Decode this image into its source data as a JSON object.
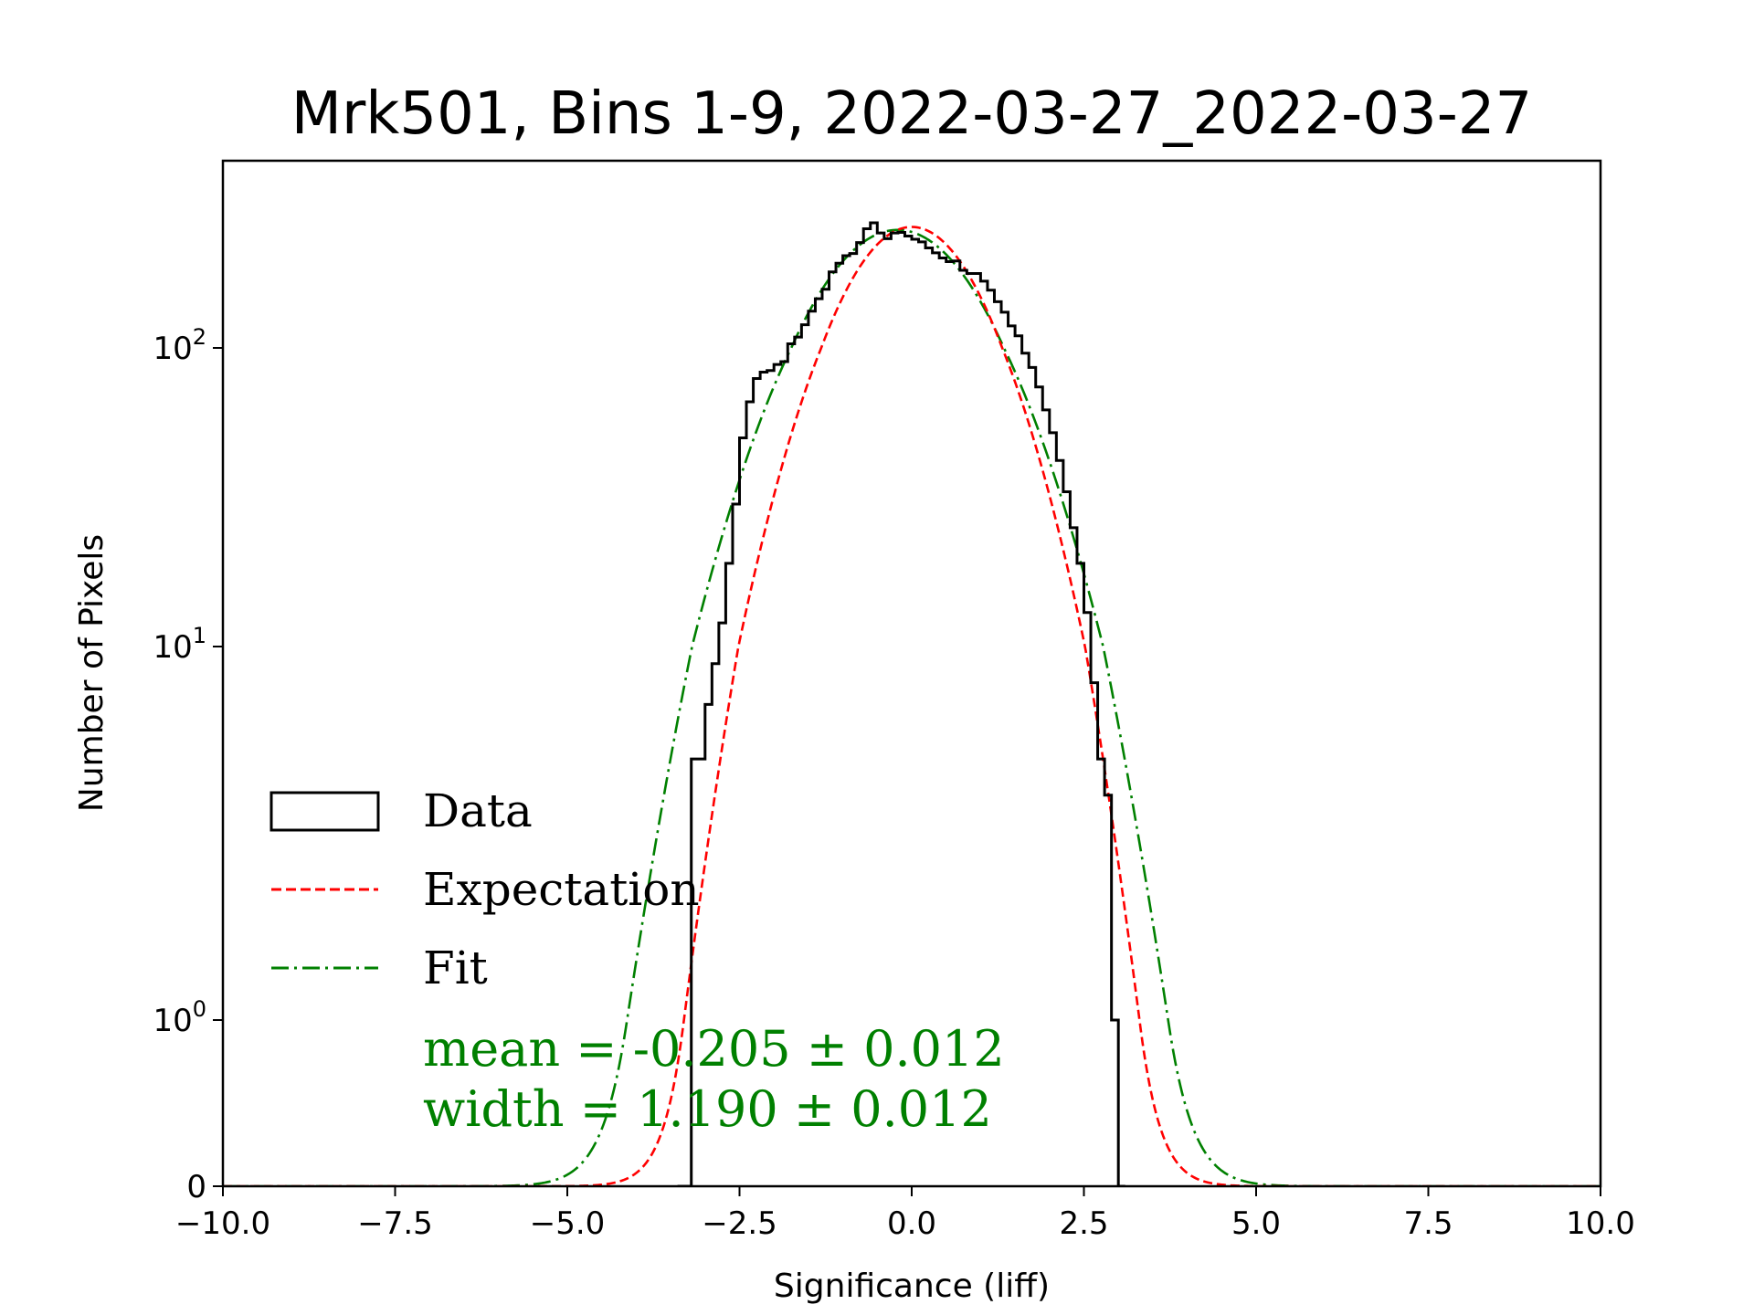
{
  "chart_data": {
    "type": "histogram",
    "title": "Mrk501, Bins 1-9, 2022-03-27_2022-03-27",
    "xlabel": "Significance (liff)",
    "ylabel": "Number of Pixels",
    "xlim": [
      -10.0,
      10.0
    ],
    "x_ticks": [
      -10.0,
      -7.5,
      -5.0,
      -2.5,
      0.0,
      2.5,
      5.0,
      7.5,
      10.0
    ],
    "x_tick_labels": [
      "−10.0",
      "−7.5",
      "−5.0",
      "−2.5",
      "0.0",
      "2.5",
      "5.0",
      "7.5",
      "10.0"
    ],
    "y_scale": "symlog",
    "y_ticks": [
      0,
      1,
      10,
      100
    ],
    "y_tick_labels": [
      {
        "plain": "0"
      },
      {
        "base": "10",
        "exp": "0"
      },
      {
        "base": "10",
        "exp": "1"
      },
      {
        "base": "10",
        "exp": "2"
      }
    ],
    "ylim_top": 380,
    "colors": {
      "data": "#000000",
      "expectation": "#ff0000",
      "fit": "#008000",
      "faded": "#bbbbbb"
    },
    "legend": {
      "location": "lower-left",
      "entries": [
        {
          "label": "Data",
          "style": "box"
        },
        {
          "label": "Expectation",
          "style": "dashed"
        },
        {
          "label": "Fit",
          "style": "dashdot"
        }
      ]
    },
    "annotations": [
      {
        "text": "mean = -0.205 ± 0.012",
        "color": "#008000"
      },
      {
        "text": "width = 1.190 ± 0.012",
        "color": "#008000"
      }
    ],
    "series": [
      {
        "name": "Data",
        "kind": "step-histogram",
        "bin_width": 0.1,
        "bins": [
          [
            -3.4,
            0.0
          ],
          [
            -3.3,
            0.0
          ],
          [
            -3.2,
            5.0
          ],
          [
            -3.1,
            5.0
          ],
          [
            -3.0,
            7.0
          ],
          [
            -2.9,
            9.0
          ],
          [
            -2.8,
            12.0
          ],
          [
            -2.7,
            19.0
          ],
          [
            -2.6,
            30.0
          ],
          [
            -2.5,
            50.0
          ],
          [
            -2.4,
            66.0
          ],
          [
            -2.3,
            79.0
          ],
          [
            -2.2,
            83.0
          ],
          [
            -2.1,
            84.0
          ],
          [
            -2.0,
            88.0
          ],
          [
            -1.9,
            90.0
          ],
          [
            -1.8,
            103.0
          ],
          [
            -1.7,
            108.0
          ],
          [
            -1.6,
            118.0
          ],
          [
            -1.5,
            130.0
          ],
          [
            -1.4,
            142.0
          ],
          [
            -1.3,
            152.0
          ],
          [
            -1.2,
            172.0
          ],
          [
            -1.1,
            183.0
          ],
          [
            -1.0,
            193.0
          ],
          [
            -0.9,
            196.0
          ],
          [
            -0.8,
            212.0
          ],
          [
            -0.7,
            234.0
          ],
          [
            -0.6,
            244.0
          ],
          [
            -0.5,
            227.0
          ],
          [
            -0.4,
            218.0
          ],
          [
            -0.3,
            227.0
          ],
          [
            -0.2,
            228.0
          ],
          [
            -0.1,
            222.0
          ],
          [
            0.0,
            217.0
          ],
          [
            0.1,
            213.0
          ],
          [
            0.2,
            204.0
          ],
          [
            0.3,
            197.0
          ],
          [
            0.4,
            190.0
          ],
          [
            0.5,
            185.0
          ],
          [
            0.6,
            186.0
          ],
          [
            0.7,
            174.0
          ],
          [
            0.8,
            170.0
          ],
          [
            0.9,
            170.0
          ],
          [
            1.0,
            161.0
          ],
          [
            1.1,
            151.0
          ],
          [
            1.2,
            139.0
          ],
          [
            1.3,
            129.0
          ],
          [
            1.4,
            117.0
          ],
          [
            1.5,
            109.0
          ],
          [
            1.6,
            96.0
          ],
          [
            1.7,
            86.0
          ],
          [
            1.8,
            74.0
          ],
          [
            1.9,
            62.0
          ],
          [
            2.0,
            52.0
          ],
          [
            2.1,
            42.0
          ],
          [
            2.2,
            33.0
          ],
          [
            2.3,
            25.0
          ],
          [
            2.4,
            19.0
          ],
          [
            2.5,
            13.0
          ],
          [
            2.6,
            8.0
          ],
          [
            2.7,
            5.0
          ],
          [
            2.8,
            4.0
          ],
          [
            2.9,
            1.0
          ],
          [
            3.0,
            0.0
          ]
        ]
      },
      {
        "name": "Expectation",
        "kind": "gaussian-curve",
        "amplitude": 237,
        "mean": 0.0,
        "sigma": 1.0,
        "x_range": [
          -10.0,
          10.0
        ]
      },
      {
        "name": "Fit",
        "kind": "gaussian-curve",
        "amplitude": 232,
        "mean": -0.205,
        "sigma": 1.19,
        "x_range": [
          -10.0,
          10.0
        ]
      }
    ]
  }
}
